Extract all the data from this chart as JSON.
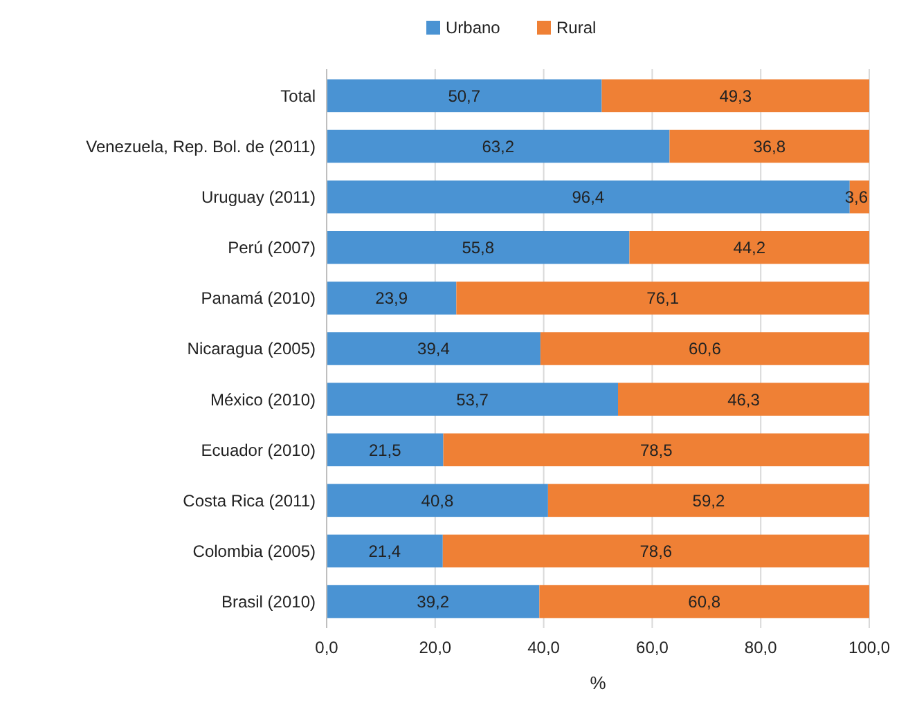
{
  "chart_data": {
    "type": "bar",
    "orientation": "horizontal",
    "stacked": true,
    "xlabel": "%",
    "categories": [
      "Total",
      "Venezuela, Rep. Bol. de (2011)",
      "Uruguay (2011)",
      "Perú (2007)",
      "Panamá (2010)",
      "Nicaragua (2005)",
      "México (2010)",
      "Ecuador (2010)",
      "Costa Rica (2011)",
      "Colombia (2005)",
      "Brasil (2010)"
    ],
    "series": [
      {
        "name": "Urbano",
        "color": "#4a93d3",
        "values": [
          50.7,
          63.2,
          96.4,
          55.8,
          23.9,
          39.4,
          53.7,
          21.5,
          40.8,
          21.4,
          39.2
        ]
      },
      {
        "name": "Rural",
        "color": "#ef8035",
        "values": [
          49.3,
          36.8,
          3.6,
          44.2,
          76.1,
          60.6,
          46.3,
          78.5,
          59.2,
          78.6,
          60.8
        ]
      }
    ],
    "value_labels": [
      [
        "50,7",
        "63,2",
        "96,4",
        "55,8",
        "23,9",
        "39,4",
        "53,7",
        "21,5",
        "40,8",
        "21,4",
        "39,2"
      ],
      [
        "49,3",
        "36,8",
        "3,6",
        "44,2",
        "76,1",
        "60,6",
        "46,3",
        "78,5",
        "59,2",
        "78,6",
        "60,8"
      ]
    ],
    "xlim": [
      0,
      100
    ],
    "xticks": [
      {
        "value": 0,
        "label": "0,0"
      },
      {
        "value": 20,
        "label": "20,0"
      },
      {
        "value": 40,
        "label": "40,0"
      },
      {
        "value": 60,
        "label": "60,0"
      },
      {
        "value": 80,
        "label": "80,0"
      },
      {
        "value": 100,
        "label": "100,0"
      }
    ],
    "grid": "x",
    "legend": "top"
  }
}
